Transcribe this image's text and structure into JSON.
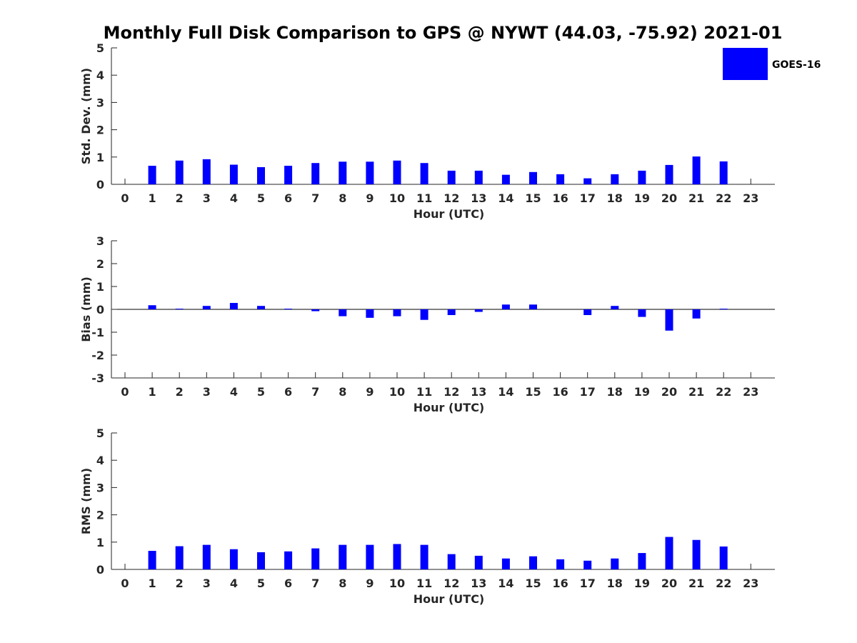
{
  "chart_data": [
    {
      "type": "bar",
      "title": "Monthly Full Disk Comparison to GPS @ NYWT (44.03, -75.92) 2021-01",
      "xlabel": "Hour (UTC)",
      "ylabel": "Std. Dev. (mm)",
      "ylim": [
        0,
        5
      ],
      "yticks": [
        "0",
        "1",
        "2",
        "3",
        "4",
        "5"
      ],
      "categories": [
        "0",
        "1",
        "2",
        "3",
        "4",
        "5",
        "6",
        "7",
        "8",
        "9",
        "10",
        "11",
        "12",
        "13",
        "14",
        "15",
        "16",
        "17",
        "18",
        "19",
        "20",
        "21",
        "22",
        "23"
      ],
      "series": [
        {
          "name": "GOES-16",
          "color": "#0000ff",
          "values": [
            null,
            0.68,
            0.87,
            0.92,
            0.72,
            0.63,
            0.68,
            0.78,
            0.83,
            0.83,
            0.87,
            0.78,
            0.5,
            0.5,
            0.35,
            0.45,
            0.37,
            0.22,
            0.37,
            0.5,
            0.71,
            1.02,
            0.84,
            null
          ]
        }
      ]
    },
    {
      "type": "bar",
      "title": "",
      "xlabel": "Hour (UTC)",
      "ylabel": "Bias (mm)",
      "ylim": [
        -3,
        3
      ],
      "yticks": [
        "-3",
        "-2",
        "-1",
        "0",
        "1",
        "2",
        "3"
      ],
      "categories": [
        "0",
        "1",
        "2",
        "3",
        "4",
        "5",
        "6",
        "7",
        "8",
        "9",
        "10",
        "11",
        "12",
        "13",
        "14",
        "15",
        "16",
        "17",
        "18",
        "19",
        "20",
        "21",
        "22",
        "23"
      ],
      "series": [
        {
          "name": "GOES-16",
          "color": "#0000ff",
          "values": [
            null,
            0.18,
            0.03,
            0.15,
            0.28,
            0.15,
            0.03,
            -0.08,
            -0.3,
            -0.37,
            -0.3,
            -0.46,
            -0.25,
            -0.11,
            0.21,
            0.21,
            0.0,
            -0.25,
            0.15,
            -0.33,
            -0.93,
            -0.4,
            0.03,
            null
          ]
        }
      ]
    },
    {
      "type": "bar",
      "title": "",
      "xlabel": "Hour (UTC)",
      "ylabel": "RMS (mm)",
      "ylim": [
        0,
        5
      ],
      "yticks": [
        "0",
        "1",
        "2",
        "3",
        "4",
        "5"
      ],
      "categories": [
        "0",
        "1",
        "2",
        "3",
        "4",
        "5",
        "6",
        "7",
        "8",
        "9",
        "10",
        "11",
        "12",
        "13",
        "14",
        "15",
        "16",
        "17",
        "18",
        "19",
        "20",
        "21",
        "22",
        "23"
      ],
      "series": [
        {
          "name": "GOES-16",
          "color": "#0000ff",
          "values": [
            null,
            0.68,
            0.85,
            0.9,
            0.74,
            0.63,
            0.66,
            0.77,
            0.9,
            0.9,
            0.93,
            0.9,
            0.56,
            0.5,
            0.4,
            0.48,
            0.37,
            0.32,
            0.4,
            0.6,
            1.19,
            1.08,
            0.84,
            null
          ]
        }
      ]
    }
  ],
  "legend": {
    "label": "GOES-16",
    "color": "#0000ff",
    "placement": "top-right"
  }
}
